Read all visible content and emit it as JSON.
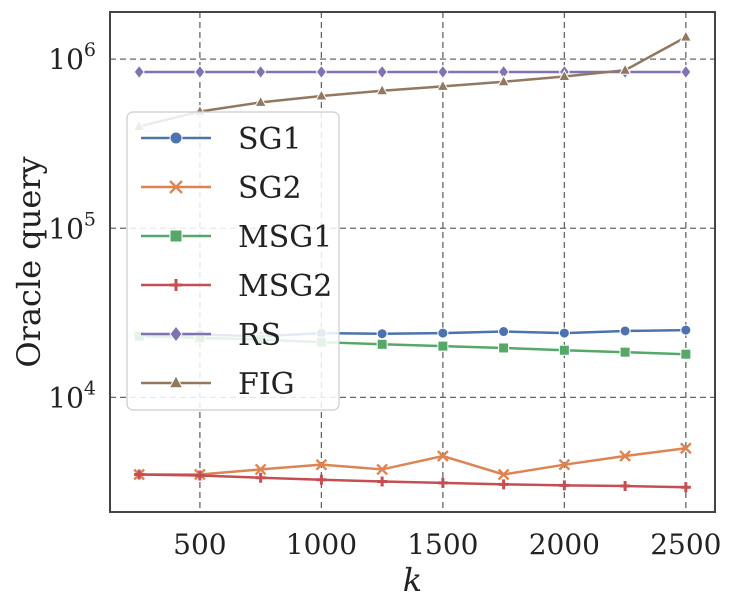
{
  "chart_data": {
    "type": "line",
    "xlabel": "k",
    "ylabel": "Oracle query",
    "yscale": "log",
    "xlim": [
      130,
      2620
    ],
    "ylim": [
      2100,
      1900000
    ],
    "xticks": [
      500,
      1000,
      1500,
      2000,
      2500
    ],
    "xtick_labels": [
      "500",
      "1000",
      "1500",
      "2000",
      "2500"
    ],
    "yticks": [
      {
        "value": 10000,
        "base": "10",
        "exp": "4"
      },
      {
        "value": 100000,
        "base": "10",
        "exp": "5"
      },
      {
        "value": 1000000,
        "base": "10",
        "exp": "6"
      }
    ],
    "grid": true,
    "legend_position": "center-left",
    "x": [
      250,
      500,
      750,
      1000,
      1250,
      1500,
      1750,
      2000,
      2250,
      2500
    ],
    "series": [
      {
        "name": "SG1",
        "color": "#4c72b0",
        "marker": "circle",
        "values": [
          23000,
          23500,
          23000,
          24000,
          23800,
          24000,
          24500,
          24000,
          24700,
          25000
        ]
      },
      {
        "name": "SG2",
        "color": "#dd8452",
        "marker": "x",
        "values": [
          3500,
          3500,
          3750,
          4000,
          3750,
          4500,
          3500,
          4000,
          4500,
          5000
        ]
      },
      {
        "name": "MSG1",
        "color": "#55a868",
        "marker": "square",
        "values": [
          23000,
          22500,
          22000,
          21200,
          20600,
          20100,
          19600,
          19000,
          18500,
          18000
        ]
      },
      {
        "name": "MSG2",
        "color": "#c44e52",
        "marker": "plus",
        "values": [
          3500,
          3450,
          3350,
          3260,
          3180,
          3120,
          3060,
          3020,
          2990,
          2940
        ]
      },
      {
        "name": "RS",
        "color": "#8172b3",
        "marker": "diamond",
        "values": [
          840000,
          840000,
          840000,
          840000,
          840000,
          840000,
          840000,
          840000,
          840000,
          840000
        ]
      },
      {
        "name": "FIG",
        "color": "#937860",
        "marker": "triangle",
        "values": [
          400000,
          490000,
          555000,
          605000,
          650000,
          690000,
          735000,
          790000,
          860000,
          1350000
        ]
      }
    ]
  }
}
